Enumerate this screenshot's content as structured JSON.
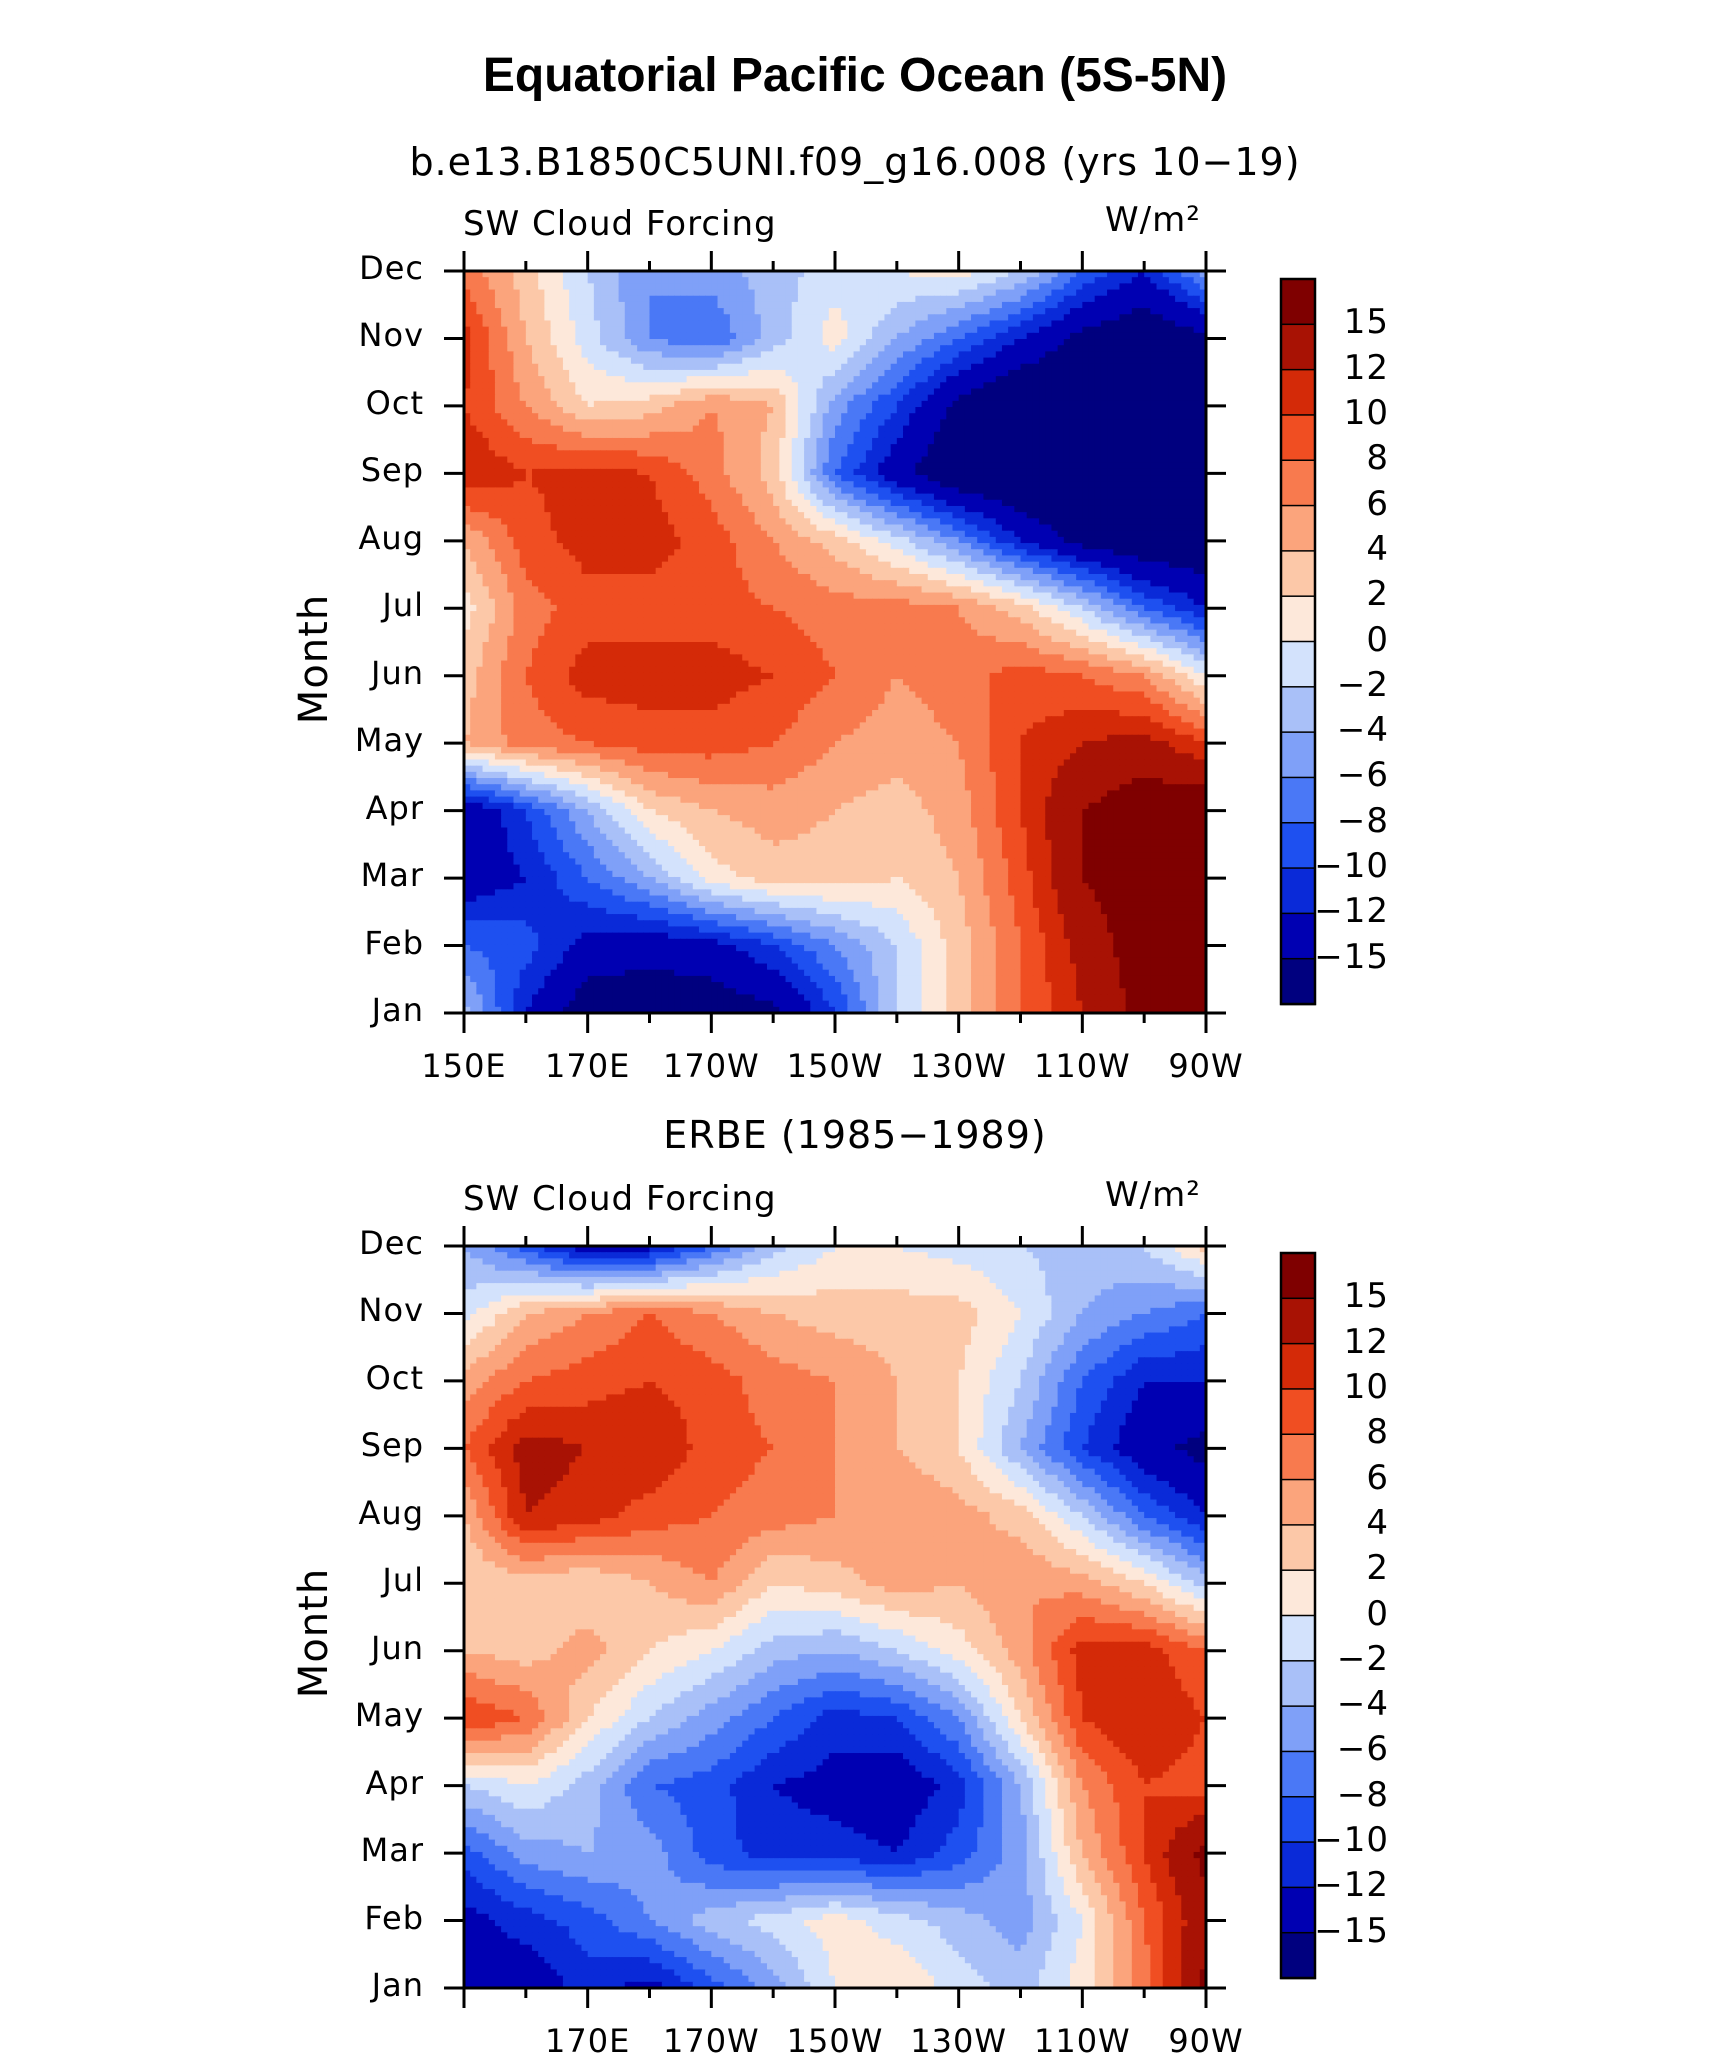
{
  "main_title": "Equatorial Pacific Ocean (5S-5N)",
  "chart_data": [
    {
      "type": "heatmap",
      "title": "b.e13.B1850C5UNI.f09_g16.008 (yrs 10−19)",
      "left_label": "SW Cloud Forcing",
      "right_label": "W/m²",
      "ylabel": "Month",
      "xlabel": "",
      "x_tick_labels": [
        "150E",
        "170E",
        "170W",
        "150W",
        "130W",
        "110W",
        "90W"
      ],
      "y_tick_labels": [
        "Jan",
        "Feb",
        "Mar",
        "Apr",
        "May",
        "Jun",
        "Jul",
        "Aug",
        "Sep",
        "Oct",
        "Nov",
        "Dec"
      ],
      "x_longitudes": [
        150,
        160,
        170,
        180,
        190,
        200,
        210,
        220,
        230,
        240,
        250,
        260,
        270
      ],
      "values": [
        [
          -3,
          -12,
          -17,
          -17,
          -17,
          -16,
          -10,
          -2,
          3,
          8,
          12,
          16,
          18
        ],
        [
          -8,
          -9,
          -13,
          -14,
          -13,
          -10,
          -6,
          -2,
          3,
          8,
          13,
          17,
          18
        ],
        [
          -14,
          -12,
          -8,
          -4,
          1,
          3,
          3,
          2,
          4,
          9,
          15,
          17,
          18
        ],
        [
          -15,
          -10,
          -4,
          2,
          4,
          5,
          4,
          3,
          5,
          10,
          15,
          17,
          18
        ],
        [
          4,
          7,
          8,
          9,
          9,
          8,
          6,
          5,
          6,
          10,
          12,
          13,
          10
        ],
        [
          3,
          8,
          11,
          11,
          11,
          10,
          8,
          6,
          7,
          9,
          8,
          6,
          0
        ],
        [
          1,
          7,
          9,
          9,
          9,
          8,
          7,
          7,
          6,
          3,
          -2,
          -8,
          -12
        ],
        [
          4,
          9,
          11,
          11,
          9,
          6,
          3,
          -1,
          -6,
          -12,
          -16,
          -18,
          -18
        ],
        [
          12,
          10,
          11,
          10,
          7,
          3,
          -8,
          -14,
          -18,
          -19,
          -19,
          -19,
          -19
        ],
        [
          10,
          6,
          2,
          3,
          6,
          4,
          -5,
          -10,
          -16,
          -19,
          -19,
          -19,
          -19
        ],
        [
          11,
          4,
          -1,
          -6,
          -8,
          -3,
          1,
          -4,
          -8,
          -12,
          -16,
          -18,
          -16
        ],
        [
          7,
          3,
          -2,
          -6,
          -5,
          -3,
          -1,
          0,
          1,
          -2,
          -8,
          -12,
          -5
        ]
      ],
      "levels": [
        -15,
        -12,
        -10,
        -8,
        -6,
        -4,
        -2,
        0,
        2,
        4,
        6,
        8,
        10,
        12,
        15
      ],
      "colorbar_labels": [
        "15",
        "12",
        "10",
        "8",
        "6",
        "4",
        "2",
        "0",
        "−2",
        "−4",
        "−6",
        "−8",
        "−10",
        "−12",
        "−15"
      ]
    },
    {
      "type": "heatmap",
      "title": "ERBE (1985−1989)",
      "left_label": "SW Cloud Forcing",
      "right_label": "W/m²",
      "ylabel": "Month",
      "xlabel": "",
      "x_tick_labels": [
        "170E",
        "170W",
        "150W",
        "130W",
        "110W",
        "90W"
      ],
      "y_tick_labels": [
        "Jan",
        "Feb",
        "Mar",
        "Apr",
        "May",
        "Jun",
        "Jul",
        "Aug",
        "Sep",
        "Oct",
        "Nov",
        "Dec"
      ],
      "x_longitudes": [
        150,
        160,
        170,
        180,
        190,
        200,
        210,
        220,
        230,
        240,
        250,
        260,
        270
      ],
      "values": [
        [
          -12,
          -14,
          -11,
          -13,
          -9,
          -5,
          0,
          2,
          -1,
          -3,
          1,
          7,
          16
        ],
        [
          -13,
          -11,
          -9,
          -6,
          -3,
          -1,
          1,
          -1,
          -3,
          -5,
          0,
          8,
          14
        ],
        [
          -9,
          -5,
          -4,
          -5,
          -9,
          -11,
          -11,
          -12,
          -9,
          -5,
          4,
          10,
          16
        ],
        [
          -2,
          0,
          -3,
          -8,
          -9,
          -12,
          -13,
          -14,
          -11,
          -4,
          6,
          10,
          9
        ],
        [
          10,
          8,
          2,
          -2,
          -5,
          -8,
          -11,
          -10,
          -6,
          2,
          10,
          12,
          10
        ],
        [
          4,
          3,
          5,
          2,
          0,
          -3,
          -4,
          -2,
          1,
          5,
          11,
          11,
          8
        ],
        [
          2,
          3,
          2,
          4,
          6,
          2,
          3,
          5,
          4,
          6,
          5,
          2,
          -3
        ],
        [
          4,
          12,
          11,
          9,
          8,
          7,
          6,
          6,
          5,
          3,
          -2,
          -8,
          -12
        ],
        [
          8,
          13,
          12,
          12,
          9,
          8,
          6,
          4,
          2,
          -4,
          -10,
          -14,
          -16
        ],
        [
          5,
          8,
          9,
          10,
          9,
          7,
          6,
          4,
          2,
          -2,
          -8,
          -12,
          -12
        ],
        [
          -1,
          4,
          6,
          8,
          6,
          4,
          3,
          3,
          3,
          0,
          -4,
          -6,
          -8
        ],
        [
          -4,
          -9,
          -14,
          -13,
          -8,
          -3,
          0,
          0,
          -1,
          -2,
          -3,
          -2,
          3
        ]
      ],
      "levels": [
        -15,
        -12,
        -10,
        -8,
        -6,
        -4,
        -2,
        0,
        2,
        4,
        6,
        8,
        10,
        12,
        15
      ],
      "colorbar_labels": [
        "15",
        "12",
        "10",
        "8",
        "6",
        "4",
        "2",
        "0",
        "−2",
        "−4",
        "−6",
        "−8",
        "−10",
        "−12",
        "−15"
      ]
    }
  ],
  "colors": {
    "bands": [
      "#00007f",
      "#0000b2",
      "#0a2ad8",
      "#1e50f0",
      "#4a78f6",
      "#7fa0f8",
      "#a9c0f8",
      "#d3e2fc",
      "#fde8da",
      "#fcc8a8",
      "#fba47c",
      "#f87a4e",
      "#f04e22",
      "#d42a08",
      "#a81204",
      "#7f0000"
    ]
  }
}
